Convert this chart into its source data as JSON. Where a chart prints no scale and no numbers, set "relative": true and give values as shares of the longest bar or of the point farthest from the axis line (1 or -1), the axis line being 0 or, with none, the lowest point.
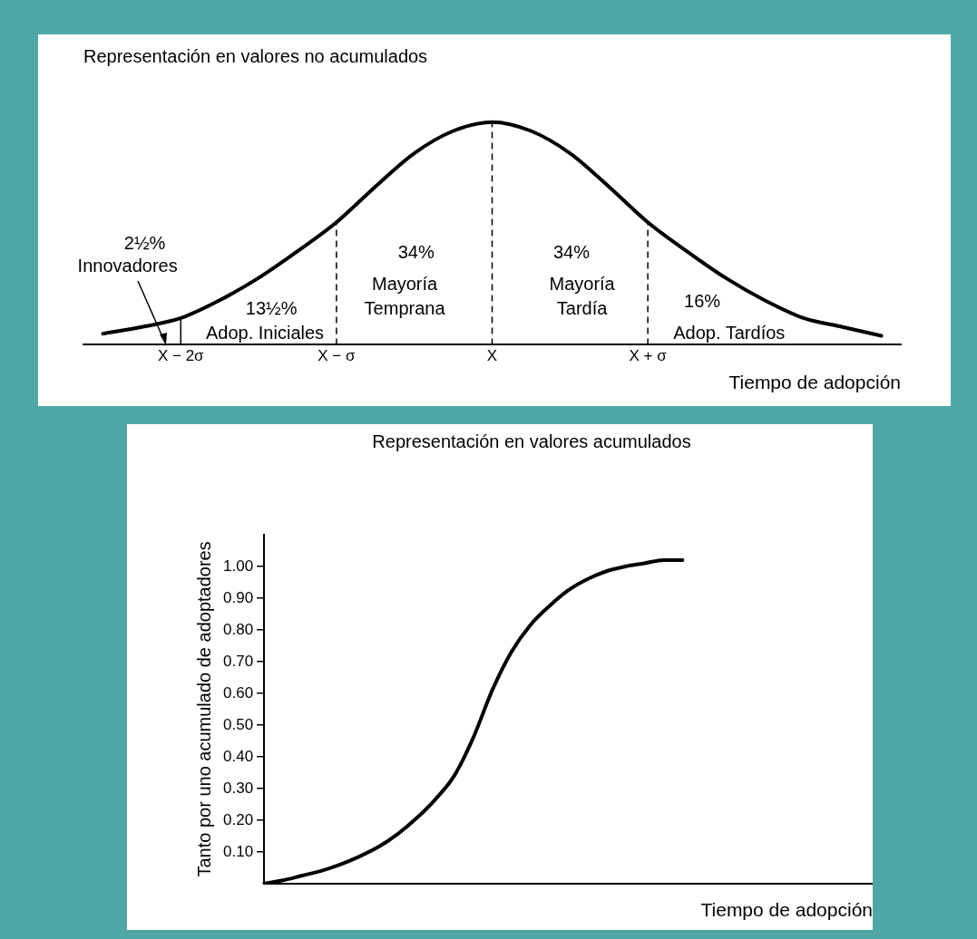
{
  "chart_data": [
    {
      "type": "line",
      "title": "Representación en valores no acumulados",
      "xlabel": "Tiempo de adopción",
      "relative": true,
      "categories": [
        null,
        null,
        "X − 2σ",
        null,
        null,
        null,
        "X − σ",
        null,
        null,
        null,
        "X",
        null,
        null,
        null,
        "X + σ",
        null,
        null,
        null,
        null,
        null,
        null
      ],
      "series": [
        {
          "color": "#000000",
          "values": [
            0.05,
            0.08,
            0.12,
            0.2,
            0.3,
            0.42,
            0.55,
            0.71,
            0.86,
            0.96,
            1,
            0.96,
            0.86,
            0.71,
            0.55,
            0.42,
            0.3,
            0.2,
            0.12,
            0.08,
            0.04
          ]
        }
      ],
      "tick_labels": "x",
      "marker": "none",
      "line_style": "solid",
      "ref_lines": [
        {
          "axis": "x",
          "value": "X − 2σ",
          "line_style": "solid",
          "color": "#000000"
        },
        {
          "axis": "x",
          "value": "X − σ",
          "line_style": "dashed",
          "color": "#000000"
        },
        {
          "axis": "x",
          "value": "X",
          "line_style": "dashed",
          "color": "#000000"
        },
        {
          "axis": "x",
          "value": "X + σ",
          "line_style": "dashed",
          "color": "#000000"
        }
      ],
      "annotations": [
        "2½%",
        "Innovadores",
        "13½%",
        "Adop. Iniciales",
        "34%",
        "Mayoría",
        "Temprana",
        "34%",
        "Mayoría",
        "Tardía",
        "16%",
        "Adop. Tardíos"
      ]
    },
    {
      "type": "line",
      "title": "Representación en valores acumulados",
      "xlabel": "Tiempo de adopción",
      "ylabel": "Tanto por uno acumulado de adoptadores",
      "categories": [
        null,
        null,
        null,
        null,
        null,
        null,
        null,
        null,
        null,
        null,
        null,
        null,
        null,
        null,
        null,
        null,
        null,
        null,
        null,
        null,
        null,
        null,
        null,
        null,
        null,
        null,
        null,
        null,
        null,
        null,
        null,
        null,
        null
      ],
      "series": [
        {
          "color": "#000000",
          "values": [
            0,
            0.01,
            0.025,
            0.04,
            0.06,
            0.085,
            0.115,
            0.155,
            0.205,
            0.265,
            0.34,
            0.46,
            0.61,
            0.73,
            0.815,
            0.875,
            0.925,
            0.96,
            0.985,
            1.0,
            1.01,
            1.02,
            1.02,
            null,
            null,
            null,
            null,
            null,
            null,
            null,
            null,
            null,
            null
          ]
        }
      ],
      "ylim": [
        0,
        1.1
      ],
      "yticks": [
        {
          "value": 0.1,
          "label": "0.10"
        },
        {
          "value": 0.2,
          "label": "0.20"
        },
        {
          "value": 0.3,
          "label": "0.30"
        },
        {
          "value": 0.4,
          "label": "0.40"
        },
        {
          "value": 0.5,
          "label": "0.50"
        },
        {
          "value": 0.6,
          "label": "0.60"
        },
        {
          "value": 0.7,
          "label": "0.70"
        },
        {
          "value": 0.8,
          "label": "0.80"
        },
        {
          "value": 0.9,
          "label": "0.90"
        },
        {
          "value": 1,
          "label": "1.00"
        }
      ],
      "tick_labels": "y",
      "marker": "none",
      "line_style": "solid"
    }
  ]
}
